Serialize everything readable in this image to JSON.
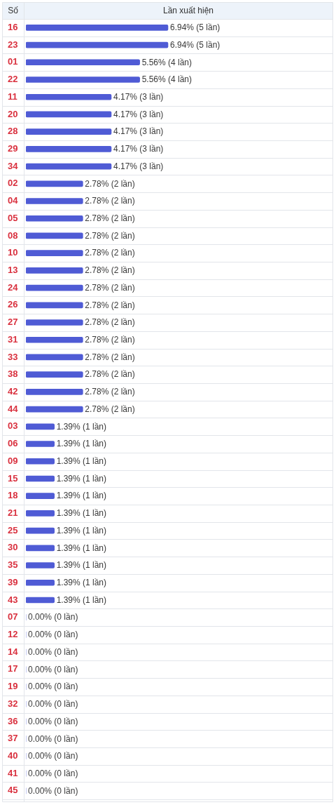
{
  "chart_data": {
    "type": "bar",
    "orientation": "horizontal",
    "ylabel": "Số",
    "xlabel": "Lần xuất hiện",
    "categories": [
      "16",
      "23",
      "01",
      "22",
      "11",
      "20",
      "28",
      "29",
      "34",
      "02",
      "04",
      "05",
      "08",
      "10",
      "13",
      "24",
      "26",
      "27",
      "31",
      "33",
      "38",
      "42",
      "44",
      "03",
      "06",
      "09",
      "15",
      "18",
      "21",
      "25",
      "30",
      "35",
      "39",
      "43",
      "07",
      "12",
      "14",
      "17",
      "19",
      "32",
      "36",
      "37",
      "40",
      "41",
      "45"
    ],
    "values": [
      6.94,
      6.94,
      5.56,
      5.56,
      4.17,
      4.17,
      4.17,
      4.17,
      4.17,
      2.78,
      2.78,
      2.78,
      2.78,
      2.78,
      2.78,
      2.78,
      2.78,
      2.78,
      2.78,
      2.78,
      2.78,
      2.78,
      2.78,
      1.39,
      1.39,
      1.39,
      1.39,
      1.39,
      1.39,
      1.39,
      1.39,
      1.39,
      1.39,
      1.39,
      0,
      0,
      0,
      0,
      0,
      0,
      0,
      0,
      0,
      0,
      0
    ],
    "value_labels": [
      "6.94% (5 lần)",
      "6.94% (5 lần)",
      "5.56% (4 lần)",
      "5.56% (4 lần)",
      "4.17% (3 lần)",
      "4.17% (3 lần)",
      "4.17% (3 lần)",
      "4.17% (3 lần)",
      "4.17% (3 lần)",
      "2.78% (2 lần)",
      "2.78% (2 lần)",
      "2.78% (2 lần)",
      "2.78% (2 lần)",
      "2.78% (2 lần)",
      "2.78% (2 lần)",
      "2.78% (2 lần)",
      "2.78% (2 lần)",
      "2.78% (2 lần)",
      "2.78% (2 lần)",
      "2.78% (2 lần)",
      "2.78% (2 lần)",
      "2.78% (2 lần)",
      "2.78% (2 lần)",
      "1.39% (1 lần)",
      "1.39% (1 lần)",
      "1.39% (1 lần)",
      "1.39% (1 lần)",
      "1.39% (1 lần)",
      "1.39% (1 lần)",
      "1.39% (1 lần)",
      "1.39% (1 lần)",
      "1.39% (1 lần)",
      "1.39% (1 lần)",
      "1.39% (1 lần)",
      "0.00% (0 lần)",
      "0.00% (0 lần)",
      "0.00% (0 lần)",
      "0.00% (0 lần)",
      "0.00% (0 lần)",
      "0.00% (0 lần)",
      "0.00% (0 lần)",
      "0.00% (0 lần)",
      "0.00% (0 lần)",
      "0.00% (0 lần)",
      "0.00% (0 lần)"
    ],
    "color": "#4f5bd5",
    "grid": "y",
    "tick_labels": "y"
  }
}
